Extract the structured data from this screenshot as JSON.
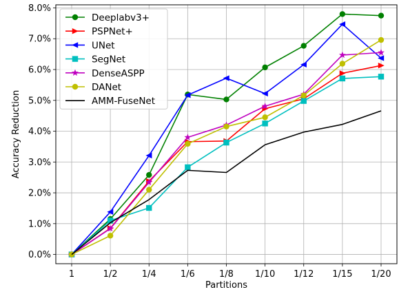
{
  "chart_data": {
    "type": "line",
    "title": "",
    "xlabel": "Partitions",
    "ylabel": "Accuracy Reduction",
    "categories": [
      "1",
      "1/2",
      "1/4",
      "1/6",
      "1/8",
      "1/10",
      "1/12",
      "1/15",
      "1/20"
    ],
    "ylim": [
      -0.3,
      8.1
    ],
    "yticks": [
      0.0,
      1.0,
      2.0,
      3.0,
      4.0,
      5.0,
      6.0,
      7.0,
      8.0
    ],
    "ytick_labels": [
      "0.0%",
      "1.0%",
      "2.0%",
      "3.0%",
      "4.0%",
      "5.0%",
      "6.0%",
      "7.0%",
      "8.0%"
    ],
    "y_unit": "%",
    "grid": true,
    "legend_position": "top-left",
    "series": [
      {
        "name": "Deeplabv3+",
        "color": "#008000",
        "marker": "circle",
        "values": [
          0.0,
          1.15,
          2.58,
          5.19,
          5.03,
          6.07,
          6.77,
          7.8,
          7.75
        ]
      },
      {
        "name": "PSPNet+",
        "color": "#ff0000",
        "marker": "triangle-right",
        "values": [
          0.0,
          0.85,
          2.38,
          3.66,
          3.68,
          4.73,
          5.05,
          5.88,
          6.13
        ]
      },
      {
        "name": "UNet",
        "color": "#0000ff",
        "marker": "triangle-left",
        "values": [
          0.0,
          1.38,
          3.21,
          5.17,
          5.72,
          5.22,
          6.16,
          7.47,
          6.37
        ]
      },
      {
        "name": "SegNet",
        "color": "#00bfbf",
        "marker": "square",
        "values": [
          0.0,
          1.1,
          1.51,
          2.83,
          3.63,
          4.25,
          4.98,
          5.71,
          5.77
        ]
      },
      {
        "name": "DenseASPP",
        "color": "#bf00bf",
        "marker": "star",
        "values": [
          0.0,
          0.84,
          2.34,
          3.8,
          4.2,
          4.81,
          5.2,
          6.47,
          6.55
        ]
      },
      {
        "name": "DANet",
        "color": "#bfbf00",
        "marker": "circle",
        "values": [
          0.0,
          0.61,
          2.1,
          3.59,
          4.15,
          4.45,
          5.16,
          6.19,
          6.96
        ]
      },
      {
        "name": "AMM-FuseNet",
        "color": "#000000",
        "marker": "none",
        "values": [
          0.0,
          1.03,
          1.78,
          2.73,
          2.66,
          3.56,
          3.97,
          4.22,
          4.66
        ]
      }
    ]
  }
}
